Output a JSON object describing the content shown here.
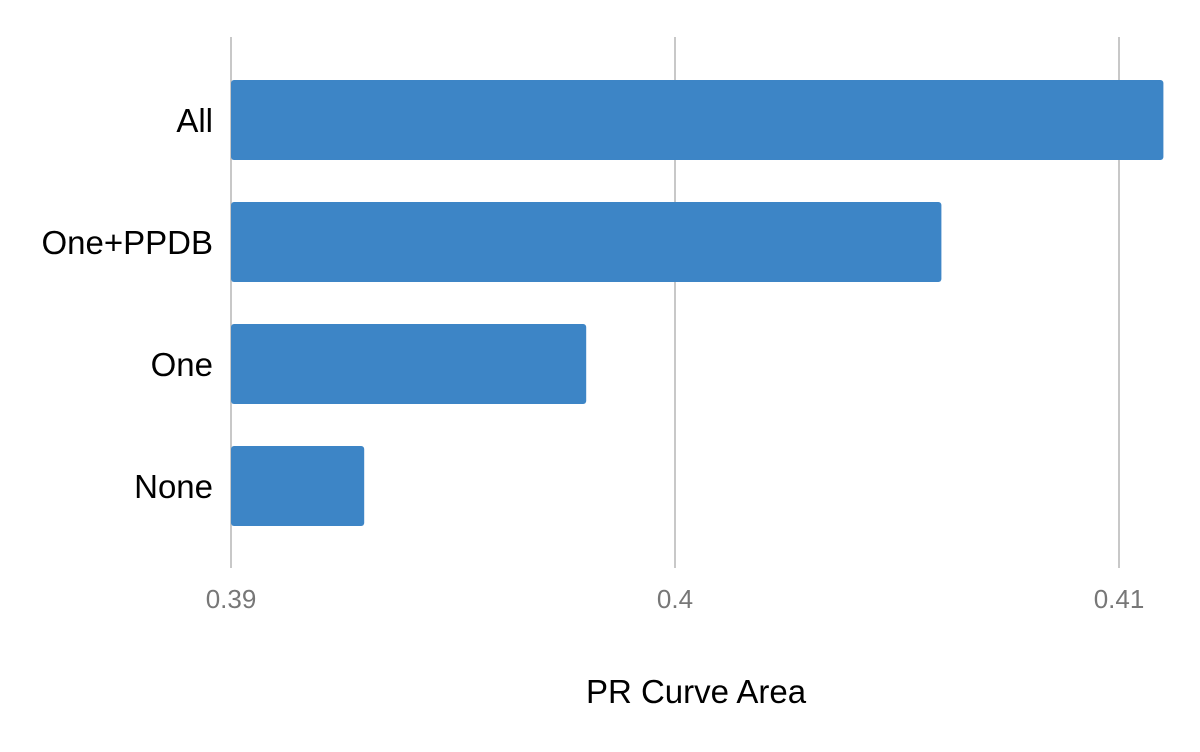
{
  "chart_data": {
    "type": "bar",
    "orientation": "horizontal",
    "title": "",
    "xlabel": "PR Curve Area",
    "ylabel": "",
    "categories": [
      "All",
      "One+PPDB",
      "One",
      "None"
    ],
    "values": [
      0.411,
      0.406,
      0.398,
      0.393
    ],
    "xlim": [
      0.39,
      0.411
    ],
    "xticks": [
      0.39,
      0.4,
      0.41
    ],
    "xtick_labels": [
      "0.39",
      "0.4",
      "0.41"
    ],
    "grid": true,
    "legend": "none",
    "bar_color": "#3d85c6",
    "gridline_color": "#c8c8c8",
    "tick_label_color": "#777777"
  }
}
